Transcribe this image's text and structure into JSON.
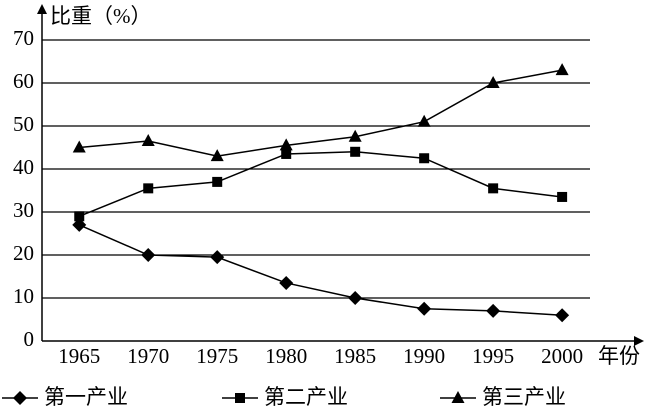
{
  "chart_data": {
    "type": "line",
    "y_label": "比重（%）",
    "x_label": "年份",
    "x": [
      1965,
      1970,
      1975,
      1980,
      1985,
      1990,
      1995,
      2000
    ],
    "xlim": [
      1962.3,
      2005.5
    ],
    "xticks": [
      1965,
      1970,
      1975,
      1980,
      1985,
      1990,
      1995,
      2000
    ],
    "ylim": [
      0,
      70
    ],
    "yticks": [
      0,
      10,
      20,
      30,
      40,
      50,
      60,
      70
    ],
    "grid": true,
    "legend": "bottom",
    "series": [
      {
        "name": "第一产业",
        "color": "#000000",
        "marker": "diamond",
        "values": [
          27,
          20,
          19.5,
          13.5,
          10,
          7.5,
          7,
          6
        ]
      },
      {
        "name": "第二产业",
        "color": "#000000",
        "marker": "square",
        "values": [
          29,
          35.5,
          37,
          43.5,
          44,
          42.5,
          35.5,
          33.5
        ]
      },
      {
        "name": "第三产业",
        "color": "#000000",
        "marker": "triangle",
        "values": [
          45,
          46.5,
          43,
          45.5,
          47.5,
          51,
          60,
          63
        ]
      }
    ]
  }
}
